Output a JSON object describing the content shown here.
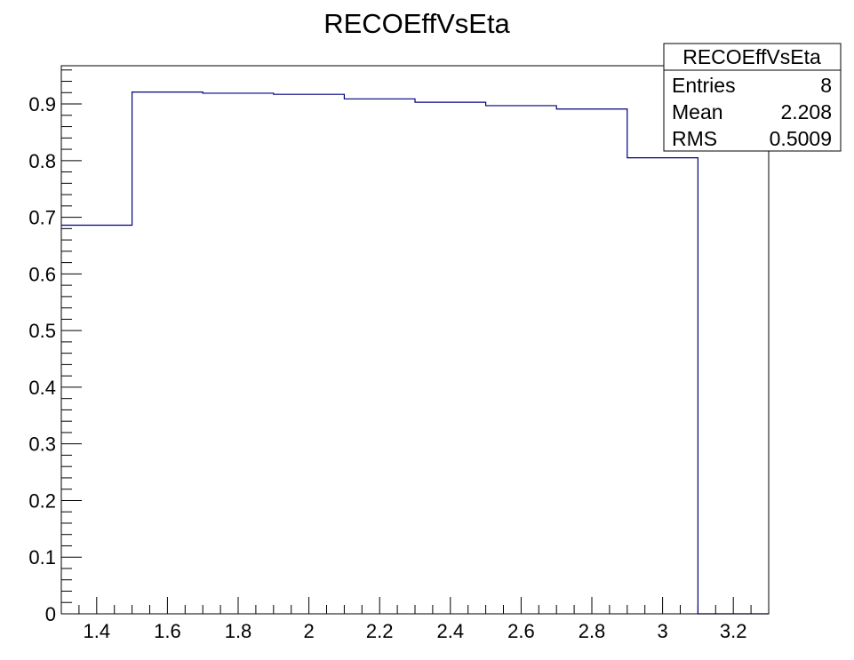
{
  "chart_data": {
    "type": "bar",
    "style": "histogram-step",
    "title": "RECOEffVsEta",
    "xlabel": "",
    "ylabel": "",
    "xlim": [
      1.3,
      3.3
    ],
    "ylim": [
      0,
      0.9675
    ],
    "x_ticks": [
      "1.4",
      "1.6",
      "1.8",
      "2",
      "2.2",
      "2.4",
      "2.6",
      "2.8",
      "3",
      "3.2"
    ],
    "x_tick_values": [
      1.4,
      1.6,
      1.8,
      2.0,
      2.2,
      2.4,
      2.6,
      2.8,
      3.0,
      3.2
    ],
    "y_ticks": [
      "0",
      "0.1",
      "0.2",
      "0.3",
      "0.4",
      "0.5",
      "0.6",
      "0.7",
      "0.8",
      "0.9"
    ],
    "y_tick_values": [
      0,
      0.1,
      0.2,
      0.3,
      0.4,
      0.5,
      0.6,
      0.7,
      0.8,
      0.9
    ],
    "bin_edges": [
      1.3,
      1.5,
      1.7,
      1.9,
      2.1,
      2.3,
      2.5,
      2.7,
      2.9,
      3.1,
      3.3
    ],
    "values": [
      0.686,
      0.921,
      0.919,
      0.917,
      0.909,
      0.903,
      0.897,
      0.891,
      0.805,
      0,
      0
    ],
    "line_color": "#000080",
    "grid": false,
    "legend": "none",
    "stats_box": {
      "position": "top-right",
      "title": "RECOEffVsEta",
      "rows": [
        {
          "label": "Entries",
          "value": "8"
        },
        {
          "label": "Mean",
          "value": "2.208"
        },
        {
          "label": "RMS",
          "value": "0.5009"
        }
      ]
    }
  }
}
